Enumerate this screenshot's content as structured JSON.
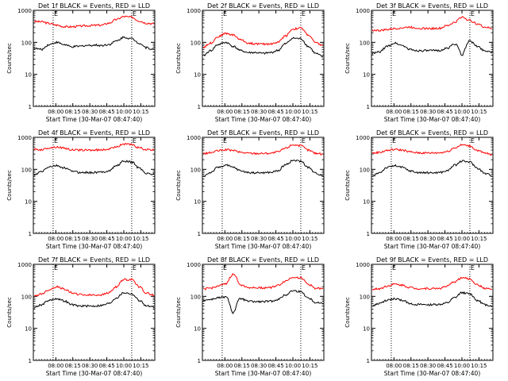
{
  "chart_data": [
    {
      "type": "line",
      "title": "Det 1f BLACK = Events, RED = LLD",
      "xlabel": "Start Time (30-Mar-07 08:47:40)",
      "ylabel": "Counts/sec",
      "yscale": "log",
      "ylim": [
        1,
        1000
      ],
      "yticks": [
        "1",
        "10",
        "100",
        "1000"
      ],
      "xticks": [
        "08:00",
        "08:15",
        "08:30",
        "08:45",
        "10:00",
        "10:15"
      ],
      "markers": [
        "E",
        "E"
      ],
      "series": [
        {
          "color": "#ff0000",
          "values": [
            450,
            440,
            390,
            345,
            310,
            305,
            320,
            330,
            340,
            345,
            400,
            520,
            640,
            610,
            470,
            400,
            380
          ]
        },
        {
          "color": "#000000",
          "values": [
            65,
            60,
            85,
            100,
            85,
            72,
            75,
            80,
            82,
            80,
            86,
            110,
            145,
            130,
            95,
            68,
            60
          ]
        }
      ]
    },
    {
      "type": "line",
      "title": "Det 2f BLACK = Events, RED = LLD",
      "xlabel": "Start Time (30-Mar-07 08:47:40)",
      "ylabel": "Counts/sec",
      "yscale": "log",
      "ylim": [
        1,
        1000
      ],
      "yticks": [
        "1",
        "10",
        "100",
        "1000"
      ],
      "xticks": [
        "08:00",
        "08:15",
        "08:30",
        "08:45",
        "10:00",
        "10:15"
      ],
      "markers": [
        "E",
        "E"
      ],
      "series": [
        {
          "color": "#ff0000",
          "values": [
            70,
            95,
            150,
            190,
            170,
            120,
            95,
            90,
            88,
            90,
            100,
            160,
            260,
            280,
            170,
            95,
            80
          ]
        },
        {
          "color": "#000000",
          "values": [
            38,
            55,
            85,
            100,
            75,
            55,
            48,
            48,
            45,
            48,
            56,
            90,
            135,
            130,
            75,
            45,
            35
          ]
        }
      ]
    },
    {
      "type": "line",
      "title": "Det 3f BLACK = Events, RED = LLD",
      "xlabel": "Start Time (30-Mar-07 08:47:40)",
      "ylabel": "Counts/sec",
      "yscale": "log",
      "ylim": [
        1,
        1000
      ],
      "yticks": [
        "1",
        "10",
        "100",
        "1000"
      ],
      "xticks": [
        "08:00",
        "08:15",
        "08:30",
        "08:45",
        "10:00",
        "10:15"
      ],
      "markers": [
        "E",
        "E"
      ],
      "series": [
        {
          "color": "#ff0000",
          "values": [
            240,
            235,
            250,
            270,
            285,
            300,
            280,
            270,
            270,
            275,
            330,
            420,
            620,
            480,
            380,
            300,
            270
          ]
        },
        {
          "color": "#000000",
          "values": [
            45,
            50,
            75,
            95,
            80,
            60,
            55,
            55,
            55,
            56,
            65,
            90,
            40,
            110,
            75,
            55,
            50
          ]
        }
      ]
    },
    {
      "type": "line",
      "title": "Det 4f BLACK = Events, RED = LLD",
      "xlabel": "Start Time (30-Mar-07 08:47:40)",
      "ylabel": "Counts/sec",
      "yscale": "log",
      "ylim": [
        1,
        1000
      ],
      "yticks": [
        "1",
        "10",
        "100",
        "1000"
      ],
      "xticks": [
        "08:00",
        "08:15",
        "08:30",
        "08:45",
        "10:00",
        "10:15"
      ],
      "markers": [
        "E",
        "E"
      ],
      "series": [
        {
          "color": "#ff0000",
          "values": [
            420,
            410,
            470,
            500,
            460,
            410,
            400,
            400,
            400,
            405,
            430,
            520,
            620,
            590,
            470,
            410,
            400
          ]
        },
        {
          "color": "#000000",
          "values": [
            65,
            85,
            120,
            130,
            110,
            90,
            80,
            80,
            80,
            82,
            90,
            130,
            180,
            170,
            110,
            75,
            70
          ]
        }
      ]
    },
    {
      "type": "line",
      "title": "Det 5f BLACK = Events, RED = LLD",
      "xlabel": "Start Time (30-Mar-07 08:47:40)",
      "ylabel": "Counts/sec",
      "yscale": "log",
      "ylim": [
        1,
        1000
      ],
      "yticks": [
        "1",
        "10",
        "100",
        "1000"
      ],
      "xticks": [
        "08:00",
        "08:15",
        "08:30",
        "08:45",
        "10:00",
        "10:15"
      ],
      "markers": [
        "E",
        "E"
      ],
      "series": [
        {
          "color": "#ff0000",
          "values": [
            310,
            330,
            380,
            410,
            390,
            340,
            320,
            315,
            315,
            320,
            350,
            460,
            590,
            550,
            400,
            320,
            300
          ]
        },
        {
          "color": "#000000",
          "values": [
            60,
            80,
            115,
            135,
            115,
            90,
            80,
            78,
            78,
            80,
            90,
            140,
            190,
            180,
            115,
            75,
            65
          ]
        }
      ]
    },
    {
      "type": "line",
      "title": "Det 6f BLACK = Events, RED = LLD",
      "xlabel": "Start Time (30-Mar-07 08:47:40)",
      "ylabel": "Counts/sec",
      "yscale": "log",
      "ylim": [
        1,
        1000
      ],
      "yticks": [
        "1",
        "10",
        "100",
        "1000"
      ],
      "xticks": [
        "08:00",
        "08:15",
        "08:30",
        "08:45",
        "10:00",
        "10:15"
      ],
      "markers": [
        "E",
        "E"
      ],
      "series": [
        {
          "color": "#ff0000",
          "values": [
            320,
            340,
            390,
            420,
            400,
            350,
            330,
            325,
            325,
            330,
            360,
            470,
            580,
            540,
            390,
            320,
            290
          ]
        },
        {
          "color": "#000000",
          "values": [
            60,
            80,
            115,
            130,
            115,
            90,
            80,
            78,
            78,
            80,
            90,
            135,
            180,
            170,
            110,
            75,
            65
          ]
        }
      ]
    },
    {
      "type": "line",
      "title": "Det 7f BLACK = Events, RED = LLD",
      "xlabel": "Start Time (30-Mar-07 08:47:40)",
      "ylabel": "Counts/sec",
      "yscale": "log",
      "ylim": [
        1,
        1000
      ],
      "yticks": [
        "1",
        "10",
        "100",
        "1000"
      ],
      "xticks": [
        "08:00",
        "08:15",
        "08:30",
        "08:45",
        "10:00",
        "10:15"
      ],
      "markers": [
        "E",
        "E"
      ],
      "series": [
        {
          "color": "#ff0000",
          "values": [
            100,
            120,
            160,
            200,
            170,
            130,
            115,
            110,
            110,
            112,
            130,
            200,
            330,
            340,
            200,
            125,
            110
          ]
        },
        {
          "color": "#000000",
          "values": [
            45,
            55,
            75,
            85,
            72,
            55,
            50,
            50,
            50,
            52,
            60,
            90,
            130,
            120,
            75,
            50,
            45
          ]
        }
      ]
    },
    {
      "type": "line",
      "title": "Det 8f BLACK = Events, RED = LLD",
      "xlabel": "Start Time (30-Mar-07 08:47:40)",
      "ylabel": "Counts/sec",
      "yscale": "log",
      "ylim": [
        1,
        1000
      ],
      "yticks": [
        "1",
        "10",
        "100",
        "1000"
      ],
      "xticks": [
        "08:00",
        "08:15",
        "08:30",
        "08:45",
        "10:00",
        "10:15"
      ],
      "markers": [
        "E",
        "E"
      ],
      "series": [
        {
          "color": "#ff0000",
          "values": [
            170,
            180,
            210,
            240,
            480,
            230,
            190,
            185,
            185,
            190,
            220,
            300,
            400,
            380,
            240,
            180,
            170
          ]
        },
        {
          "color": "#000000",
          "values": [
            75,
            80,
            90,
            95,
            30,
            85,
            70,
            68,
            68,
            70,
            80,
            110,
            150,
            140,
            90,
            65,
            60
          ]
        }
      ]
    },
    {
      "type": "line",
      "title": "Det 9f BLACK = Events, RED = LLD",
      "xlabel": "Start Time (30-Mar-07 08:47:40)",
      "ylabel": "Counts/sec",
      "yscale": "log",
      "ylim": [
        1,
        1000
      ],
      "yticks": [
        "1",
        "10",
        "100",
        "1000"
      ],
      "xticks": [
        "08:00",
        "08:15",
        "08:30",
        "08:45",
        "10:00",
        "10:15"
      ],
      "markers": [
        "E",
        "E"
      ],
      "series": [
        {
          "color": "#ff0000",
          "values": [
            165,
            175,
            210,
            240,
            225,
            190,
            175,
            175,
            175,
            180,
            205,
            290,
            380,
            350,
            230,
            180,
            165
          ]
        },
        {
          "color": "#000000",
          "values": [
            50,
            60,
            75,
            85,
            75,
            60,
            55,
            55,
            55,
            56,
            62,
            90,
            130,
            120,
            75,
            55,
            50
          ]
        }
      ]
    }
  ]
}
